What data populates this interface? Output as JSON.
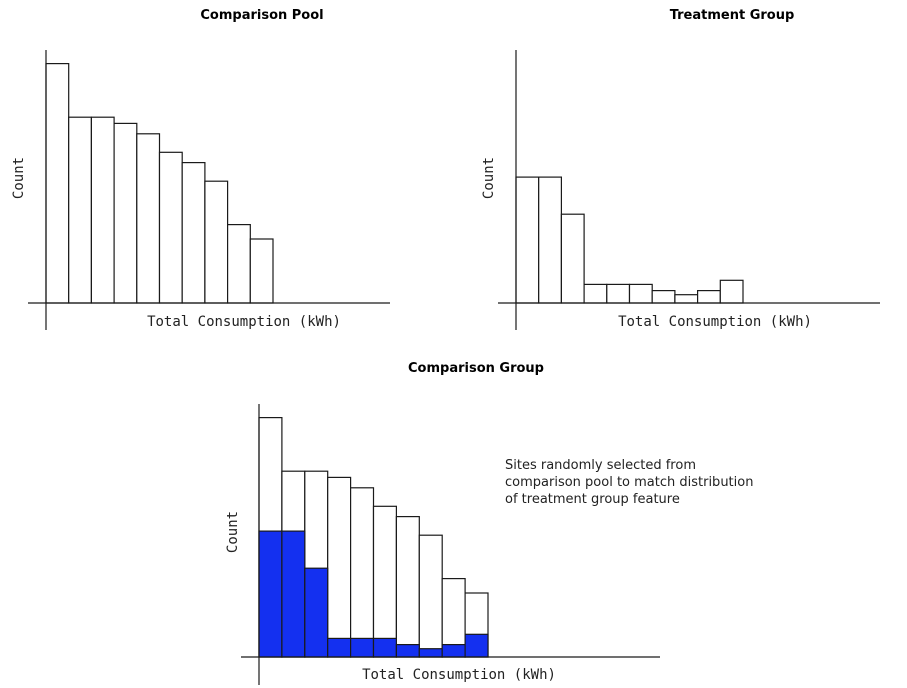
{
  "chart_data": [
    {
      "type": "bar",
      "title": "Comparison Pool",
      "xlabel": "Total Consumption (kWh)",
      "ylabel": "Count",
      "bins": 10,
      "values": [
        116,
        90,
        90,
        87,
        82,
        73,
        68,
        59,
        38,
        31
      ],
      "ylim": [
        0,
        125
      ],
      "color": "#ffffff"
    },
    {
      "type": "bar",
      "title": "Treatment Group",
      "xlabel": "Total Consumption (kWh)",
      "ylabel": "Count",
      "bins": 10,
      "values": [
        61,
        61,
        43,
        9,
        9,
        9,
        6,
        4,
        6,
        11
      ],
      "ylim": [
        0,
        125
      ],
      "color": "#ffffff"
    },
    {
      "type": "bar",
      "title": "Comparison Group",
      "xlabel": "Total Consumption (kWh)",
      "ylabel": "Count",
      "bins": 10,
      "series": [
        {
          "values": [
            116,
            90,
            90,
            87,
            82,
            73,
            68,
            59,
            38,
            31
          ],
          "color": "#ffffff"
        },
        {
          "values": [
            61,
            61,
            43,
            9,
            9,
            9,
            6,
            4,
            6,
            11
          ],
          "color": "#1430f0"
        }
      ],
      "ylim": [
        0,
        125
      ],
      "annotation": "Sites randomly selected from comparison pool to match distribution of treatment group feature"
    }
  ]
}
